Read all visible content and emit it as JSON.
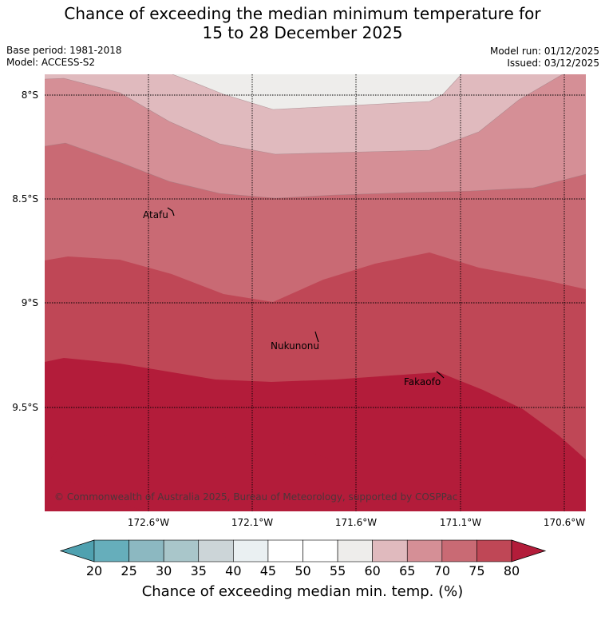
{
  "header": {
    "title_line1": "Chance of exceeding the median minimum temperature for",
    "title_line2": "15 to 28 December 2025",
    "base_period": "Base period: 1981-2018",
    "model": "Model: ACCESS-S2",
    "model_run": "Model run: 01/12/2025",
    "issued": "Issued: 03/12/2025"
  },
  "map": {
    "lat_labels": [
      "8°S",
      "8.5°S",
      "9°S",
      "9.5°S"
    ],
    "lon_labels": [
      "172.6°W",
      "172.1°W",
      "171.6°W",
      "171.1°W",
      "170.6°W"
    ],
    "places": [
      "Atafu",
      "Nukunonu",
      "Fakaofo"
    ],
    "copyright": "© Commonwealth of Australia 2025, Bureau of Meteorology, supported by COSPPac",
    "band_colors": [
      "#eeedeb",
      "#e0babe",
      "#d58f96",
      "#c96a74",
      "#bf4756",
      "#b31c3a"
    ]
  },
  "colorbar": {
    "title": "Chance of exceeding median min. temp. (%)",
    "ticks": [
      "20",
      "25",
      "30",
      "35",
      "40",
      "45",
      "50",
      "55",
      "60",
      "65",
      "70",
      "75",
      "80"
    ],
    "colors": [
      "#66aebb",
      "#8cb8c1",
      "#a9c6ca",
      "#ccd5d8",
      "#eaf0f2",
      "#ffffff",
      "#ffffff",
      "#eeedeb",
      "#e0babe",
      "#d58f96",
      "#c96a74",
      "#bf4756"
    ],
    "low_arrow_color": "#4fa1b0",
    "high_arrow_color": "#b31c3a"
  }
}
